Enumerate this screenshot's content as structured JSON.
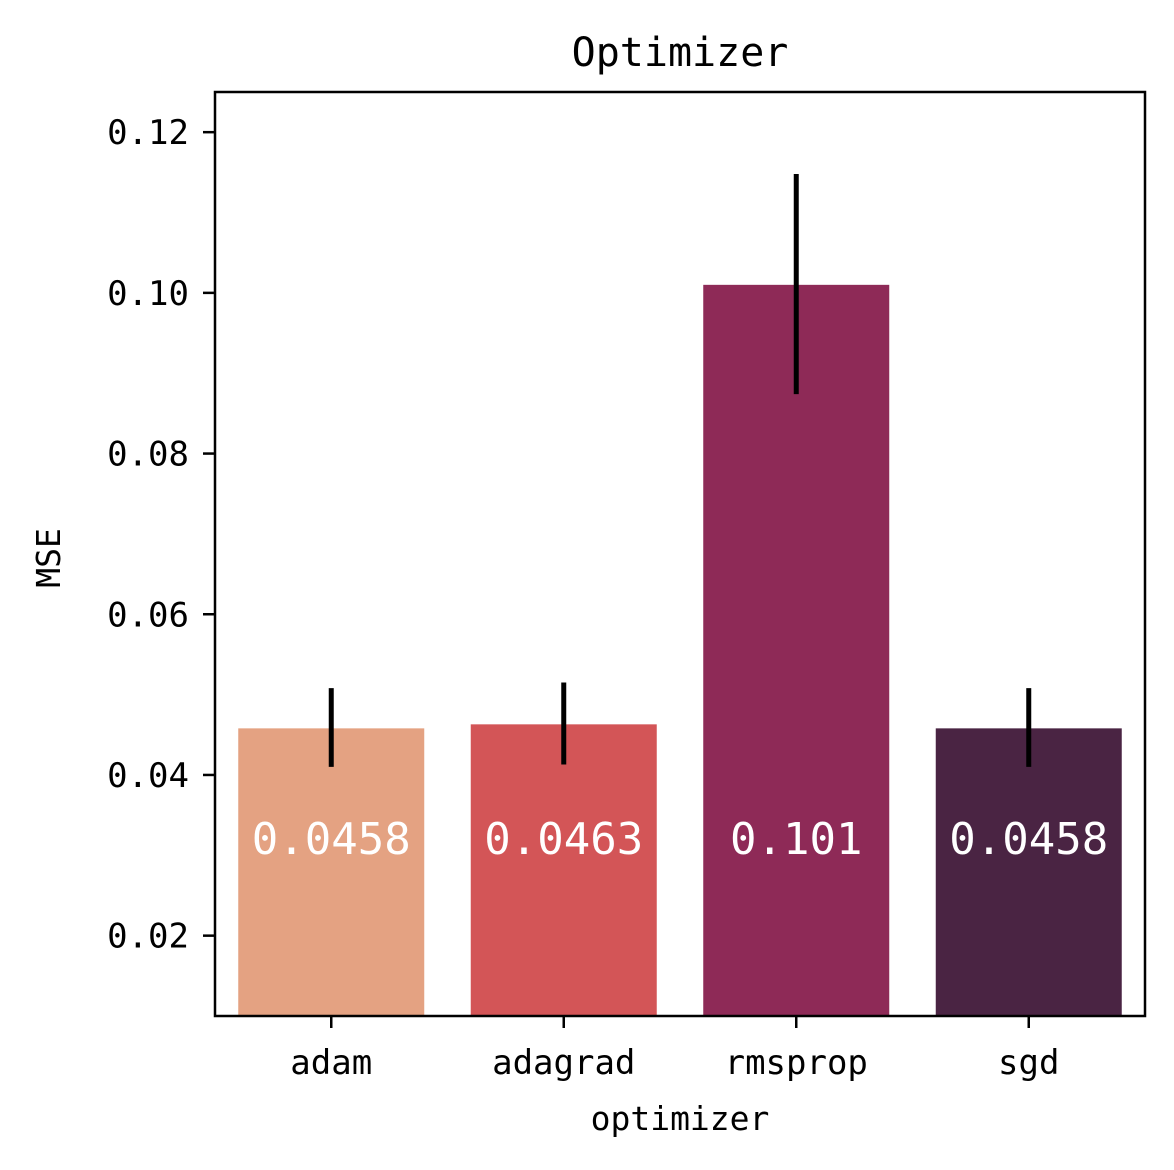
{
  "chart_data": {
    "type": "bar",
    "title": "Optimizer",
    "xlabel": "optimizer",
    "ylabel": "MSE",
    "categories": [
      "adam",
      "adagrad",
      "rmsprop",
      "sgd"
    ],
    "values": [
      0.0458,
      0.0463,
      0.101,
      0.0458
    ],
    "value_labels": [
      "0.0458",
      "0.0463",
      "0.101",
      "0.0458"
    ],
    "error_low": [
      0.041,
      0.0413,
      0.0874,
      0.041
    ],
    "error_high": [
      0.0508,
      0.0515,
      0.1148,
      0.0508
    ],
    "colors": [
      "#e4a282",
      "#d35557",
      "#8e2a57",
      "#4a2443"
    ],
    "ylim": [
      0.01,
      0.125
    ],
    "yticks": [
      0.02,
      0.04,
      0.06,
      0.08,
      0.1,
      0.12
    ],
    "ytick_labels": [
      "0.02",
      "0.04",
      "0.06",
      "0.08",
      "0.10",
      "0.12"
    ],
    "grid": false,
    "legend": "none"
  }
}
